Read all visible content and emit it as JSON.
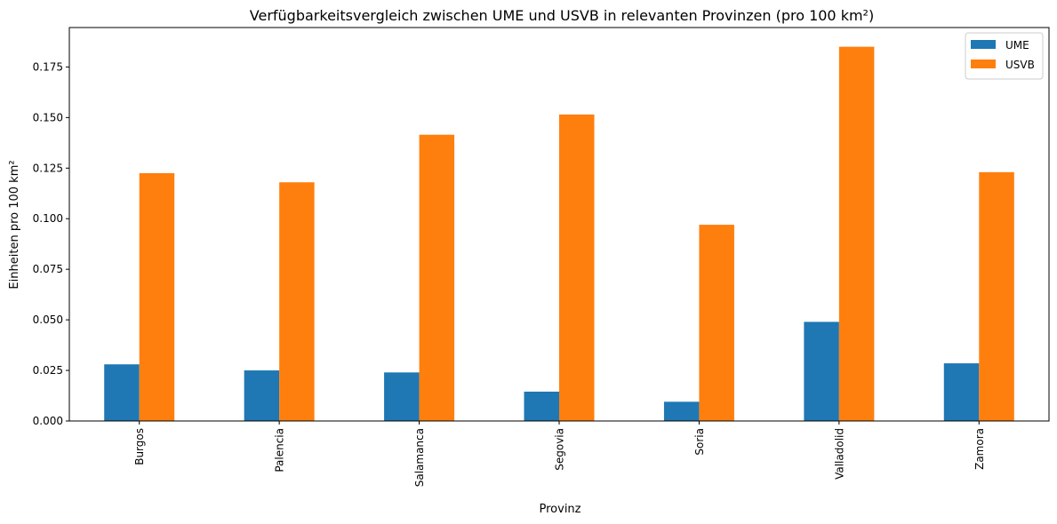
{
  "chart_data": {
    "type": "bar",
    "title": "Verfügbarkeitsvergleich zwischen UME und USVB in relevanten Provinzen (pro 100 km²)",
    "xlabel": "Provinz",
    "ylabel": "Einheiten pro 100 km²",
    "categories": [
      "Burgos",
      "Palencia",
      "Salamanca",
      "Segovia",
      "Soria",
      "Valladolid",
      "Zamora"
    ],
    "series": [
      {
        "name": "UME",
        "color": "#1f77b4",
        "values": [
          0.028,
          0.025,
          0.024,
          0.0145,
          0.0095,
          0.049,
          0.0285
        ]
      },
      {
        "name": "USVB",
        "color": "#ff7f0e",
        "values": [
          0.1225,
          0.118,
          0.1415,
          0.1515,
          0.097,
          0.185,
          0.123
        ]
      }
    ],
    "ylim": [
      0,
      0.1945
    ],
    "yticks": [
      0.0,
      0.025,
      0.05,
      0.075,
      0.1,
      0.125,
      0.15,
      0.175
    ],
    "ytick_labels": [
      "0.000",
      "0.025",
      "0.050",
      "0.075",
      "0.100",
      "0.125",
      "0.150",
      "0.175"
    ],
    "grid": false,
    "legend_position": "top-right"
  }
}
